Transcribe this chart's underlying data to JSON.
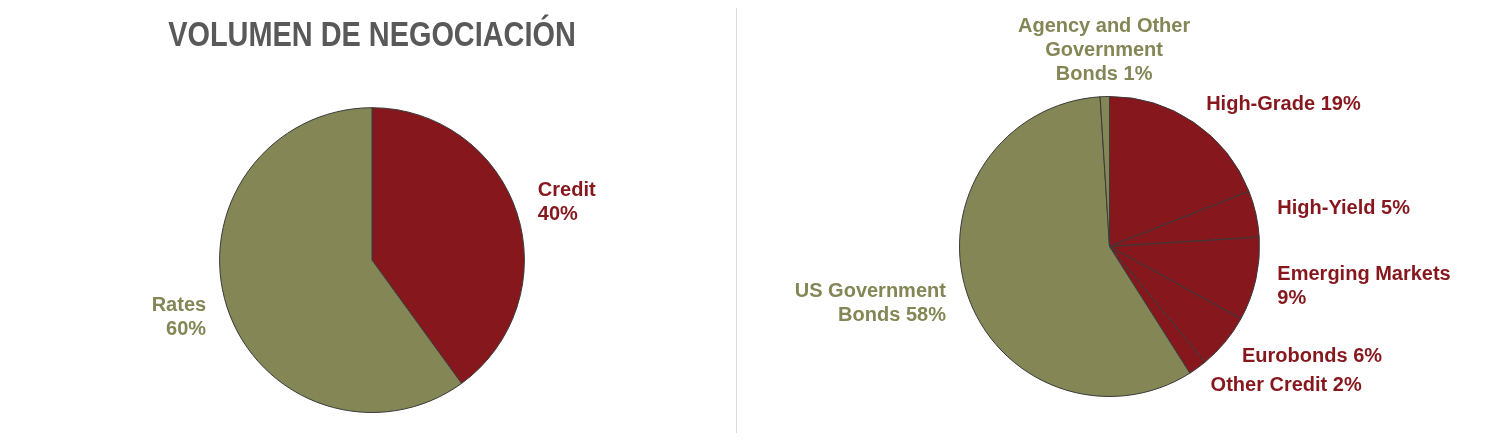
{
  "chart_data": [
    {
      "type": "pie",
      "title": "VOLUMEN DE NEGOCIACIÓN",
      "categories": [
        "Credit",
        "Rates"
      ],
      "values": [
        40,
        60
      ],
      "value_labels": [
        "40%",
        "60%"
      ],
      "colors": [
        "#85171d",
        "#848656"
      ],
      "legend": false
    },
    {
      "type": "pie",
      "categories": [
        "High-Grade",
        "High-Yield",
        "Emerging Markets",
        "Eurobonds",
        "Other Credit",
        "US Government Bonds",
        "Agency and Other Government Bonds"
      ],
      "values": [
        19,
        5,
        9,
        6,
        2,
        58,
        1
      ],
      "value_labels": [
        "19%",
        "5%",
        "9%",
        "6%",
        "2%",
        "58%",
        "1%"
      ],
      "colors": [
        "#85171d",
        "#85171d",
        "#85171d",
        "#85171d",
        "#85171d",
        "#848656",
        "#848656"
      ],
      "legend": false
    }
  ]
}
